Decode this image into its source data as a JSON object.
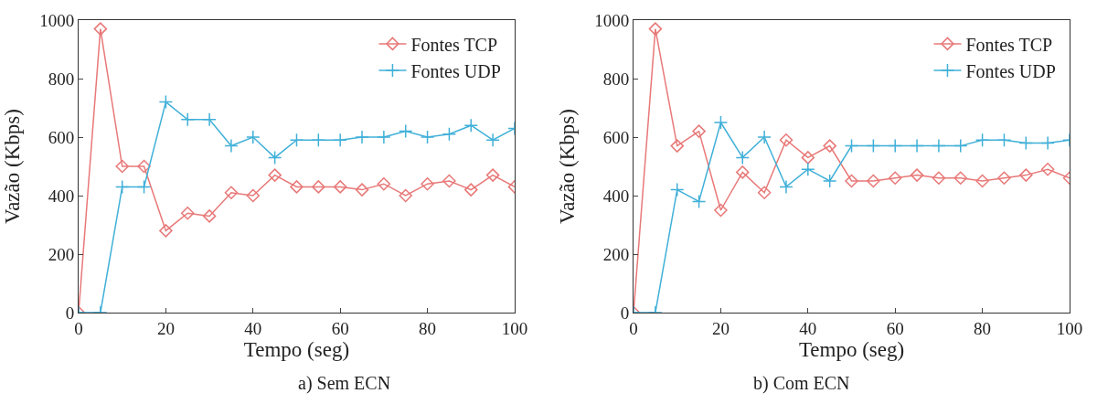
{
  "chart_data": [
    {
      "type": "line",
      "title": "a) Sem ECN",
      "xlabel": "Tempo (seg)",
      "ylabel": "Vazão (Kbps)",
      "x": [
        0,
        5,
        10,
        15,
        20,
        25,
        30,
        35,
        40,
        45,
        50,
        55,
        60,
        65,
        70,
        75,
        80,
        85,
        90,
        95,
        100
      ],
      "xlim": [
        0,
        100
      ],
      "xticks": [
        0,
        20,
        40,
        60,
        80,
        100
      ],
      "ylim": [
        0,
        1000
      ],
      "yticks": [
        0,
        200,
        400,
        600,
        800,
        1000
      ],
      "legend": "top right",
      "series": [
        {
          "name": "Fontes TCP",
          "color": "#e87878",
          "marker": "diamond",
          "values": [
            0,
            970,
            500,
            500,
            280,
            340,
            330,
            410,
            400,
            470,
            430,
            430,
            430,
            420,
            440,
            400,
            440,
            450,
            420,
            470,
            430
          ]
        },
        {
          "name": "Fontes UDP",
          "color": "#40b0d8",
          "marker": "cross",
          "values": [
            0,
            0,
            430,
            430,
            720,
            660,
            660,
            570,
            600,
            530,
            590,
            590,
            590,
            600,
            600,
            620,
            600,
            610,
            640,
            590,
            630
          ]
        }
      ]
    },
    {
      "type": "line",
      "title": "b) Com ECN",
      "xlabel": "Tempo (seg)",
      "ylabel": "Vazão (Kbps)",
      "x": [
        0,
        5,
        10,
        15,
        20,
        25,
        30,
        35,
        40,
        45,
        50,
        55,
        60,
        65,
        70,
        75,
        80,
        85,
        90,
        95,
        100
      ],
      "xlim": [
        0,
        100
      ],
      "xticks": [
        0,
        20,
        40,
        60,
        80,
        100
      ],
      "ylim": [
        0,
        1000
      ],
      "yticks": [
        0,
        200,
        400,
        600,
        800,
        1000
      ],
      "legend": "top right",
      "series": [
        {
          "name": "Fontes TCP",
          "color": "#e87878",
          "marker": "diamond",
          "values": [
            0,
            970,
            570,
            620,
            350,
            480,
            410,
            590,
            530,
            570,
            450,
            450,
            460,
            470,
            460,
            460,
            450,
            460,
            470,
            490,
            460
          ]
        },
        {
          "name": "Fontes UDP",
          "color": "#40b0d8",
          "marker": "cross",
          "values": [
            0,
            0,
            420,
            380,
            650,
            530,
            600,
            430,
            490,
            450,
            570,
            570,
            570,
            570,
            570,
            570,
            590,
            590,
            580,
            580,
            590
          ]
        }
      ]
    }
  ]
}
